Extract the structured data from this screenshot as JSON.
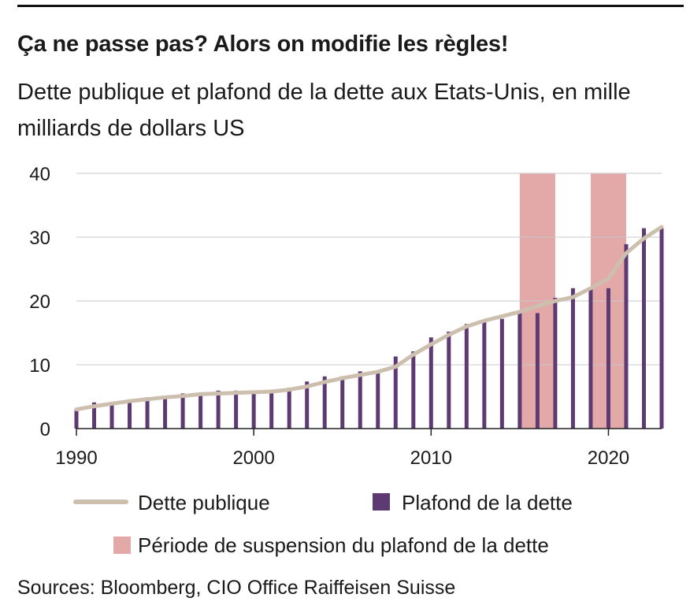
{
  "header": {
    "title": "Ça ne passe pas? Alors on modifie les règles!",
    "subtitle": "Dette publique et plafond de la dette aux Etats-Unis, en mille milliards de dollars US"
  },
  "footer": {
    "source": "Sources: Bloomberg, CIO Office Raiffeisen Suisse"
  },
  "colors": {
    "debt_line": "#cdbfae",
    "ceiling_bar": "#5e3a73",
    "suspension": "#e3a9a9",
    "grid": "#c8c8c8",
    "axis": "#222222"
  },
  "chart_data": {
    "type": "bar",
    "xlabel": "",
    "ylabel": "",
    "xlim": [
      1990,
      2023
    ],
    "ylim": [
      0,
      40
    ],
    "yticks": [
      0,
      10,
      20,
      30,
      40
    ],
    "xticks": [
      1990,
      2000,
      2010,
      2020
    ],
    "grid": true,
    "legend_position": "bottom",
    "series": [
      {
        "name": "Dette publique",
        "kind": "line",
        "x": [
          1990,
          1991,
          1992,
          1993,
          1994,
          1995,
          1996,
          1997,
          1998,
          1999,
          2000,
          2001,
          2002,
          2003,
          2004,
          2005,
          2006,
          2007,
          2008,
          2009,
          2010,
          2011,
          2012,
          2013,
          2014,
          2015,
          2016,
          2017,
          2018,
          2019,
          2020,
          2021,
          2022,
          2023
        ],
        "values": [
          3.0,
          3.5,
          3.9,
          4.3,
          4.6,
          4.9,
          5.1,
          5.4,
          5.5,
          5.6,
          5.7,
          5.8,
          6.1,
          6.6,
          7.3,
          7.9,
          8.4,
          8.9,
          9.7,
          11.6,
          13.2,
          14.7,
          16.0,
          16.9,
          17.6,
          18.3,
          19.2,
          20.0,
          20.6,
          22.0,
          23.5,
          27.5,
          29.8,
          31.6
        ]
      },
      {
        "name": "Plafond de la dette",
        "kind": "bar",
        "x": [
          1990,
          1991,
          1992,
          1993,
          1994,
          1995,
          1996,
          1997,
          1998,
          1999,
          2000,
          2001,
          2002,
          2003,
          2004,
          2005,
          2006,
          2007,
          2008,
          2009,
          2010,
          2011,
          2012,
          2013,
          2014,
          2015,
          2016,
          2017,
          2018,
          2019,
          2020,
          2021,
          2022,
          2023
        ],
        "values": [
          3.1,
          4.1,
          4.1,
          4.4,
          4.9,
          4.9,
          5.5,
          5.5,
          5.95,
          5.95,
          5.95,
          5.95,
          6.4,
          7.38,
          8.18,
          8.18,
          8.97,
          8.97,
          11.3,
          12.1,
          14.29,
          15.19,
          16.39,
          16.7,
          17.2,
          18.1,
          18.1,
          20.5,
          22.0,
          22.0,
          22.0,
          28.9,
          31.4,
          31.4
        ]
      }
    ],
    "suspension_periods": {
      "name": "Période de suspension du plafond de la dette",
      "ranges": [
        [
          2015,
          2017
        ],
        [
          2019,
          2021
        ]
      ]
    }
  }
}
